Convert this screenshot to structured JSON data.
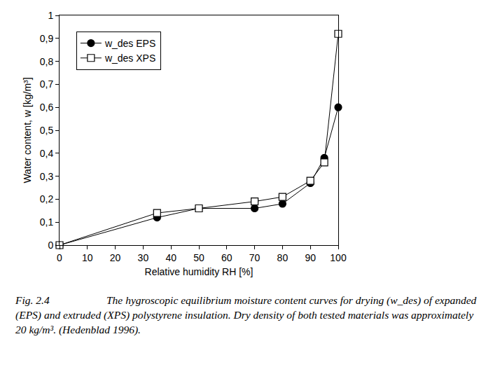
{
  "chart_data": {
    "type": "line",
    "x_label": "Relative humidity RH [%]",
    "y_label": "Water content, w [kg/m³]",
    "caption": {
      "label": "Fig. 2.4",
      "text": "The hygroscopic equilibrium moisture content curves for  drying (w_des) of expanded (EPS) and extruded (XPS) polystyrene insulation. Dry density of both tested materials was approximately 20 kg/m³. (Hedenblad 1996)."
    },
    "series": [
      {
        "name": "w_des EPS",
        "color": "#000000",
        "marker": "filled circle",
        "line_style": "solid",
        "x": [
          0,
          35,
          50,
          70,
          80,
          90,
          95,
          100
        ],
        "values": [
          0,
          0.12,
          0.16,
          0.16,
          0.18,
          0.27,
          0.38,
          0.6
        ]
      },
      {
        "name": "w_des XPS",
        "color": "#000000",
        "marker": "open square",
        "line_style": "solid",
        "x": [
          0,
          35,
          50,
          70,
          80,
          90,
          95,
          100
        ],
        "values": [
          0,
          0.14,
          0.16,
          0.19,
          0.21,
          0.28,
          0.36,
          0.92
        ]
      }
    ],
    "xlim": [
      0,
      100
    ],
    "xticks": [
      0,
      10,
      20,
      30,
      40,
      50,
      60,
      70,
      80,
      90,
      100
    ],
    "ylim": [
      0,
      1
    ],
    "yticks": [
      0,
      {
        "value": 0.1,
        "label": "0,1"
      },
      {
        "value": 0.2,
        "label": "0,2"
      },
      {
        "value": 0.3,
        "label": "0,3"
      },
      {
        "value": 0.4,
        "label": "0,4"
      },
      {
        "value": 0.5,
        "label": "0,5"
      },
      {
        "value": 0.6,
        "label": "0,6"
      },
      {
        "value": 0.7,
        "label": "0,7"
      },
      {
        "value": 0.8,
        "label": "0,8"
      },
      {
        "value": 0.9,
        "label": "0,9"
      },
      1
    ],
    "grid": false,
    "legend": "upper left"
  }
}
